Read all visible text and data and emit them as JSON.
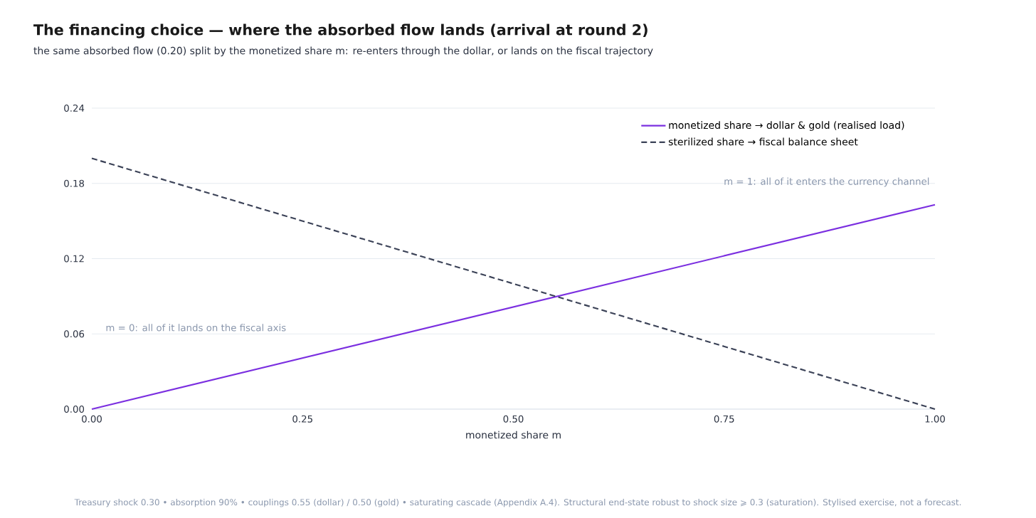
{
  "chart_data": {
    "type": "line",
    "title": "The financing choice — where the absorbed flow lands (arrival at round 2)",
    "subtitle": "the same absorbed flow (0.20) split by the monetized share m: re-enters through the dollar, or lands on the fiscal trajectory",
    "xlabel": "monetized share m",
    "x": [
      0,
      1
    ],
    "series": [
      {
        "name": "monetized share → dollar & gold (realised load)",
        "color": "#7b2fe0",
        "line_style": "solid",
        "values": [
          0,
          0.163
        ]
      },
      {
        "name": "sterilized share → fiscal balance sheet",
        "color": "#3b4257",
        "line_style": "dashed",
        "values": [
          0.2,
          0
        ]
      }
    ],
    "xlim": [
      0,
      1
    ],
    "xticks": [
      {
        "value": 0,
        "label": "0.00"
      },
      {
        "value": 0.25,
        "label": "0.25"
      },
      {
        "value": 0.5,
        "label": "0.50"
      },
      {
        "value": 0.75,
        "label": "0.75"
      },
      {
        "value": 1,
        "label": "1.00"
      }
    ],
    "ylim": [
      0,
      0.24
    ],
    "yticks": [
      {
        "value": 0,
        "label": "0.00"
      },
      {
        "value": 0.06,
        "label": "0.06"
      },
      {
        "value": 0.12,
        "label": "0.12"
      },
      {
        "value": 0.18,
        "label": "0.18"
      },
      {
        "value": 0.24,
        "label": "0.24"
      }
    ],
    "grid": "y",
    "legend": "top right",
    "annotations": [
      "m = 0: all of it lands on the fiscal axis",
      "m = 1: all of it enters the currency channel",
      "Treasury shock 0.30  •  absorption 90%  •  couplings 0.55 (dollar) / 0.50 (gold)  •  saturating cascade (Appendix A.4). Structural end-state robust to shock size ⩾ 0.3 (saturation). Stylised exercise, not a forecast."
    ]
  }
}
